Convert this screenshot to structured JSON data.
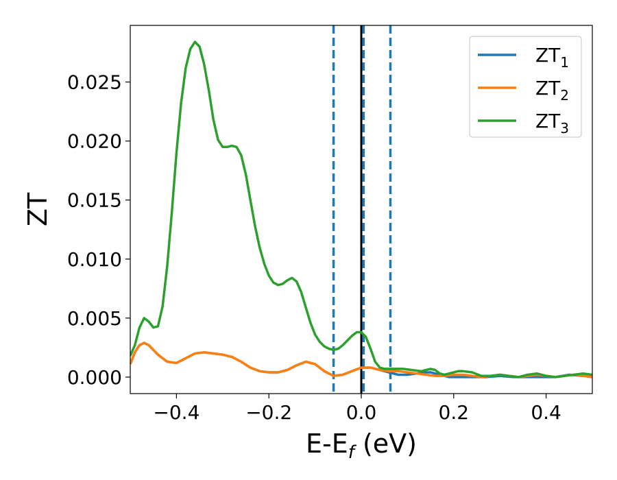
{
  "chart_data": {
    "type": "line",
    "xlabel": {
      "main": "E-E",
      "sub": "f",
      "suffix": " (eV)"
    },
    "ylabel": "ZT",
    "xlim": [
      -0.5,
      0.5
    ],
    "ylim": [
      -0.0014,
      0.0298
    ],
    "xticks": [
      {
        "value": -0.4,
        "label": "−0.4"
      },
      {
        "value": -0.2,
        "label": "−0.2"
      },
      {
        "value": 0.0,
        "label": "0.0"
      },
      {
        "value": 0.2,
        "label": "0.2"
      },
      {
        "value": 0.4,
        "label": "0.4"
      }
    ],
    "yticks": [
      {
        "value": 0.0,
        "label": "0.000"
      },
      {
        "value": 0.005,
        "label": "0.005"
      },
      {
        "value": 0.01,
        "label": "0.010"
      },
      {
        "value": 0.015,
        "label": "0.015"
      },
      {
        "value": 0.02,
        "label": "0.020"
      },
      {
        "value": 0.025,
        "label": "0.025"
      }
    ],
    "legend_position": "top-right",
    "vlines": [
      {
        "x": -0.06,
        "style": "dashed",
        "color": "#1f77b4"
      },
      {
        "x": 0.005,
        "style": "dashed",
        "color": "#1f77b4"
      },
      {
        "x": 0.063,
        "style": "dashed",
        "color": "#1f77b4"
      },
      {
        "x": 0.0,
        "style": "solid",
        "color": "#000000"
      }
    ],
    "series": [
      {
        "name": "ZT",
        "sub": "1",
        "color": "#1f77b4",
        "points": [
          [
            -0.5,
            0.0011
          ],
          [
            -0.49,
            0.0021
          ],
          [
            -0.48,
            0.0027
          ],
          [
            -0.47,
            0.0029
          ],
          [
            -0.46,
            0.0027
          ],
          [
            -0.44,
            0.0019
          ],
          [
            -0.42,
            0.0013
          ],
          [
            -0.4,
            0.0012
          ],
          [
            -0.38,
            0.0016
          ],
          [
            -0.36,
            0.002
          ],
          [
            -0.34,
            0.0021
          ],
          [
            -0.32,
            0.002
          ],
          [
            -0.3,
            0.0019
          ],
          [
            -0.28,
            0.0017
          ],
          [
            -0.26,
            0.0013
          ],
          [
            -0.24,
            0.0008
          ],
          [
            -0.22,
            0.0005
          ],
          [
            -0.2,
            0.0004
          ],
          [
            -0.18,
            0.0004
          ],
          [
            -0.16,
            0.0006
          ],
          [
            -0.14,
            0.001
          ],
          [
            -0.12,
            0.0013
          ],
          [
            -0.1,
            0.0011
          ],
          [
            -0.08,
            0.0005
          ],
          [
            -0.06,
            0.0001
          ],
          [
            -0.04,
            0.0002
          ],
          [
            -0.02,
            0.0005
          ],
          [
            0.0,
            0.0008
          ],
          [
            0.02,
            0.0008
          ],
          [
            0.04,
            0.0006
          ],
          [
            0.06,
            0.0004
          ],
          [
            0.08,
            0.0002
          ],
          [
            0.1,
            0.0002
          ],
          [
            0.12,
            0.0003
          ],
          [
            0.14,
            0.0004
          ],
          [
            0.15,
            0.0004
          ],
          [
            0.17,
            0.0002
          ],
          [
            0.19,
            0.0
          ],
          [
            0.21,
            0.0
          ],
          [
            0.24,
            0.0
          ],
          [
            0.27,
            0.0
          ],
          [
            0.3,
            0.0001
          ],
          [
            0.33,
            0.0
          ],
          [
            0.36,
            0.0
          ],
          [
            0.39,
            0.0
          ],
          [
            0.42,
            0.0
          ],
          [
            0.45,
            0.0002
          ],
          [
            0.48,
            0.0001
          ],
          [
            0.5,
            0.0
          ]
        ]
      },
      {
        "name": "ZT",
        "sub": "2",
        "color": "#ff7f0e",
        "points": [
          [
            -0.5,
            0.0011
          ],
          [
            -0.49,
            0.0021
          ],
          [
            -0.48,
            0.0027
          ],
          [
            -0.47,
            0.0029
          ],
          [
            -0.46,
            0.0027
          ],
          [
            -0.44,
            0.0019
          ],
          [
            -0.42,
            0.0013
          ],
          [
            -0.4,
            0.0012
          ],
          [
            -0.38,
            0.0016
          ],
          [
            -0.36,
            0.002
          ],
          [
            -0.34,
            0.0021
          ],
          [
            -0.32,
            0.002
          ],
          [
            -0.3,
            0.0019
          ],
          [
            -0.28,
            0.0017
          ],
          [
            -0.26,
            0.0013
          ],
          [
            -0.24,
            0.0008
          ],
          [
            -0.22,
            0.0005
          ],
          [
            -0.2,
            0.0004
          ],
          [
            -0.18,
            0.0004
          ],
          [
            -0.16,
            0.0006
          ],
          [
            -0.14,
            0.001
          ],
          [
            -0.12,
            0.0013
          ],
          [
            -0.1,
            0.0011
          ],
          [
            -0.08,
            0.0005
          ],
          [
            -0.06,
            0.0001
          ],
          [
            -0.04,
            0.0002
          ],
          [
            -0.02,
            0.0005
          ],
          [
            0.0,
            0.0008
          ],
          [
            0.02,
            0.0008
          ],
          [
            0.04,
            0.0006
          ],
          [
            0.06,
            0.0005
          ],
          [
            0.08,
            0.0005
          ],
          [
            0.1,
            0.0004
          ],
          [
            0.12,
            0.0003
          ],
          [
            0.14,
            0.0002
          ],
          [
            0.16,
            0.0001
          ],
          [
            0.18,
            0.0001
          ],
          [
            0.2,
            0.0002
          ],
          [
            0.22,
            0.0002
          ],
          [
            0.24,
            0.0001
          ],
          [
            0.26,
            0.0
          ],
          [
            0.28,
            0.0001
          ],
          [
            0.3,
            0.0002
          ],
          [
            0.32,
            0.0001
          ],
          [
            0.34,
            0.0
          ],
          [
            0.36,
            0.0001
          ],
          [
            0.38,
            0.0002
          ],
          [
            0.4,
            0.0001
          ],
          [
            0.42,
            0.0
          ],
          [
            0.44,
            0.0001
          ],
          [
            0.46,
            0.0002
          ],
          [
            0.48,
            0.0001
          ],
          [
            0.5,
            0.0
          ]
        ]
      },
      {
        "name": "ZT",
        "sub": "3",
        "color": "#2ca02c",
        "points": [
          [
            -0.5,
            0.0018
          ],
          [
            -0.49,
            0.0027
          ],
          [
            -0.48,
            0.0042
          ],
          [
            -0.47,
            0.005
          ],
          [
            -0.46,
            0.0047
          ],
          [
            -0.45,
            0.0042
          ],
          [
            -0.44,
            0.0043
          ],
          [
            -0.43,
            0.006
          ],
          [
            -0.42,
            0.0094
          ],
          [
            -0.41,
            0.014
          ],
          [
            -0.4,
            0.019
          ],
          [
            -0.39,
            0.0232
          ],
          [
            -0.38,
            0.0262
          ],
          [
            -0.37,
            0.0278
          ],
          [
            -0.36,
            0.0284
          ],
          [
            -0.35,
            0.028
          ],
          [
            -0.34,
            0.0265
          ],
          [
            -0.33,
            0.0243
          ],
          [
            -0.32,
            0.0218
          ],
          [
            -0.31,
            0.0201
          ],
          [
            -0.3,
            0.0195
          ],
          [
            -0.29,
            0.0195
          ],
          [
            -0.28,
            0.0196
          ],
          [
            -0.27,
            0.0195
          ],
          [
            -0.26,
            0.0188
          ],
          [
            -0.25,
            0.0172
          ],
          [
            -0.24,
            0.015
          ],
          [
            -0.23,
            0.0128
          ],
          [
            -0.22,
            0.011
          ],
          [
            -0.21,
            0.0096
          ],
          [
            -0.2,
            0.0086
          ],
          [
            -0.19,
            0.008
          ],
          [
            -0.18,
            0.0078
          ],
          [
            -0.17,
            0.0079
          ],
          [
            -0.16,
            0.0082
          ],
          [
            -0.15,
            0.0084
          ],
          [
            -0.14,
            0.0081
          ],
          [
            -0.13,
            0.0072
          ],
          [
            -0.12,
            0.0059
          ],
          [
            -0.11,
            0.0046
          ],
          [
            -0.1,
            0.0036
          ],
          [
            -0.09,
            0.003
          ],
          [
            -0.08,
            0.0026
          ],
          [
            -0.07,
            0.0024
          ],
          [
            -0.06,
            0.0023
          ],
          [
            -0.05,
            0.0024
          ],
          [
            -0.04,
            0.0027
          ],
          [
            -0.03,
            0.0031
          ],
          [
            -0.02,
            0.0035
          ],
          [
            -0.01,
            0.0038
          ],
          [
            0.0,
            0.0038
          ],
          [
            0.01,
            0.0034
          ],
          [
            0.02,
            0.0024
          ],
          [
            0.03,
            0.0013
          ],
          [
            0.04,
            0.0008
          ],
          [
            0.05,
            0.0007
          ],
          [
            0.07,
            0.0007
          ],
          [
            0.09,
            0.0007
          ],
          [
            0.11,
            0.0006
          ],
          [
            0.13,
            0.0005
          ],
          [
            0.15,
            0.0007
          ],
          [
            0.16,
            0.0006
          ],
          [
            0.17,
            0.0003
          ],
          [
            0.18,
            0.0002
          ],
          [
            0.19,
            0.0003
          ],
          [
            0.21,
            0.0005
          ],
          [
            0.22,
            0.0005
          ],
          [
            0.24,
            0.0004
          ],
          [
            0.26,
            0.0001
          ],
          [
            0.28,
            0.0001
          ],
          [
            0.3,
            0.0002
          ],
          [
            0.32,
            0.0001
          ],
          [
            0.34,
            0.0
          ],
          [
            0.36,
            0.0002
          ],
          [
            0.38,
            0.0003
          ],
          [
            0.4,
            0.0001
          ],
          [
            0.42,
            0.0
          ],
          [
            0.44,
            0.0001
          ],
          [
            0.46,
            0.0002
          ],
          [
            0.48,
            0.0003
          ],
          [
            0.5,
            0.0002
          ]
        ]
      }
    ]
  }
}
